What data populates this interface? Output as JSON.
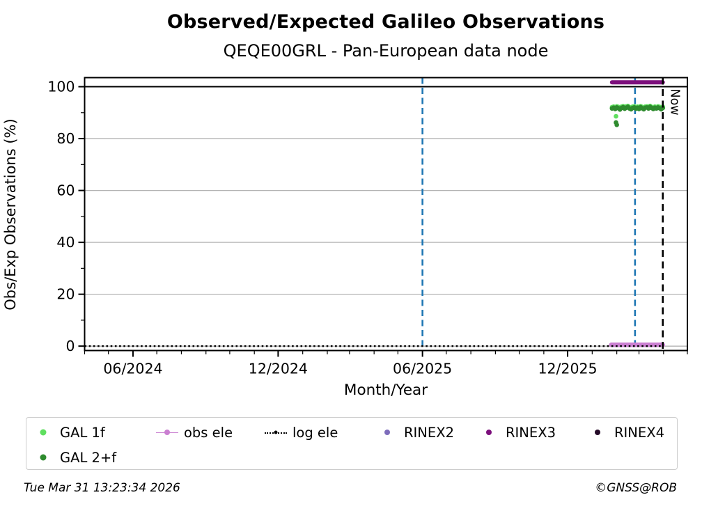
{
  "chart_data": {
    "type": "scatter",
    "title": "Observed/Expected Galileo Observations",
    "subtitle": "QEQE00GRL - Pan-European data node",
    "xlabel": "Month/Year",
    "ylabel": "Obs/Exp Observations (%)",
    "x_domain": [
      "2024-04-01",
      "2026-05-01"
    ],
    "y_domain": [
      -1.7,
      103.5
    ],
    "x_major_ticks": [
      {
        "date": "2024-06-01",
        "label": "06/2024"
      },
      {
        "date": "2024-12-01",
        "label": "12/2024"
      },
      {
        "date": "2025-06-01",
        "label": "06/2025"
      },
      {
        "date": "2025-12-01",
        "label": "12/2025"
      }
    ],
    "x_minor_tick_interval": "month",
    "y_major_ticks": [
      0,
      20,
      40,
      60,
      80,
      100
    ],
    "y_minor_ticks": [
      10,
      30,
      50,
      70,
      90
    ],
    "gridlines_y": [
      0,
      20,
      40,
      60,
      80
    ],
    "grid_color": "#b3b3b3",
    "reference_line_y": 100,
    "event_lines": [
      {
        "date": "2025-06-01",
        "color": "#1f77b4",
        "style": "dashed"
      },
      {
        "date": "2026-02-24",
        "color": "#1f77b4",
        "style": "dashed"
      }
    ],
    "now_line": {
      "date": "2026-03-31",
      "label": "Now",
      "color": "#000000",
      "style": "dashed"
    },
    "series": [
      {
        "name": "GAL 1f",
        "color": "#5fdf5f",
        "type": "points",
        "points": [
          [
            "2026-01-26",
            92.1
          ],
          [
            "2026-01-28",
            92.3
          ],
          [
            "2026-01-30",
            91.9
          ],
          [
            "2026-02-01",
            92.4
          ],
          [
            "2026-02-03",
            92.2
          ],
          [
            "2026-02-05",
            91.8
          ],
          [
            "2026-02-07",
            92.3
          ],
          [
            "2026-02-09",
            92.5
          ],
          [
            "2026-02-11",
            92.0
          ],
          [
            "2026-02-13",
            92.4
          ],
          [
            "2026-02-15",
            92.6
          ],
          [
            "2026-02-17",
            92.1
          ],
          [
            "2026-02-19",
            91.9
          ],
          [
            "2026-02-21",
            92.3
          ],
          [
            "2026-02-23",
            92.4
          ],
          [
            "2026-02-25",
            92.0
          ],
          [
            "2026-02-27",
            92.3
          ],
          [
            "2026-03-01",
            91.9
          ],
          [
            "2026-03-03",
            92.5
          ],
          [
            "2026-03-05",
            92.2
          ],
          [
            "2026-03-07",
            91.8
          ],
          [
            "2026-03-09",
            92.3
          ],
          [
            "2026-03-11",
            92.4
          ],
          [
            "2026-03-13",
            92.1
          ],
          [
            "2026-03-15",
            92.6
          ],
          [
            "2026-03-17",
            92.2
          ],
          [
            "2026-03-19",
            91.9
          ],
          [
            "2026-03-21",
            92.3
          ],
          [
            "2026-03-23",
            92.1
          ],
          [
            "2026-03-25",
            92.4
          ],
          [
            "2026-03-27",
            92.2
          ],
          [
            "2026-03-29",
            91.8
          ],
          [
            "2026-03-31",
            92.3
          ],
          [
            "2026-01-31",
            88.6
          ]
        ]
      },
      {
        "name": "GAL 2+f",
        "color": "#2e8b2e",
        "type": "points",
        "points": [
          [
            "2026-01-26",
            91.6
          ],
          [
            "2026-01-28",
            91.9
          ],
          [
            "2026-01-30",
            91.4
          ],
          [
            "2026-02-01",
            92.0
          ],
          [
            "2026-02-03",
            91.7
          ],
          [
            "2026-02-05",
            91.2
          ],
          [
            "2026-02-07",
            91.8
          ],
          [
            "2026-02-09",
            92.1
          ],
          [
            "2026-02-11",
            91.5
          ],
          [
            "2026-02-13",
            91.9
          ],
          [
            "2026-02-15",
            92.2
          ],
          [
            "2026-02-17",
            91.6
          ],
          [
            "2026-02-19",
            91.3
          ],
          [
            "2026-02-21",
            91.8
          ],
          [
            "2026-02-23",
            92.0
          ],
          [
            "2026-02-25",
            91.5
          ],
          [
            "2026-02-27",
            91.9
          ],
          [
            "2026-03-01",
            91.4
          ],
          [
            "2026-03-03",
            92.1
          ],
          [
            "2026-03-05",
            91.7
          ],
          [
            "2026-03-07",
            91.3
          ],
          [
            "2026-03-09",
            91.9
          ],
          [
            "2026-03-11",
            92.0
          ],
          [
            "2026-03-13",
            91.6
          ],
          [
            "2026-03-15",
            92.2
          ],
          [
            "2026-03-17",
            91.8
          ],
          [
            "2026-03-19",
            91.4
          ],
          [
            "2026-03-21",
            91.9
          ],
          [
            "2026-03-23",
            91.6
          ],
          [
            "2026-03-25",
            92.0
          ],
          [
            "2026-03-27",
            91.7
          ],
          [
            "2026-03-29",
            91.3
          ],
          [
            "2026-03-31",
            91.8
          ],
          [
            "2026-01-31",
            86.2
          ],
          [
            "2026-02-01",
            85.3
          ]
        ]
      },
      {
        "name": "obs ele",
        "color": "#ca7fd1",
        "type": "thick-line",
        "y": 0.5,
        "x0": "2026-01-25",
        "x1": "2026-03-31",
        "thickness": 6.5
      },
      {
        "name": "log ele",
        "color": "#000000",
        "type": "dotted-line",
        "y": 0,
        "x0": "2024-04-01",
        "x1": "2026-03-31",
        "thickness": 2.4
      },
      {
        "name": "RINEX2",
        "color": "#7d6cbb",
        "type": "points",
        "points": []
      },
      {
        "name": "RINEX3",
        "color": "#7c0f7c",
        "type": "thick-line",
        "y": 101.7,
        "x0": "2026-01-26",
        "x1": "2026-03-31",
        "thickness": 6
      },
      {
        "name": "RINEX4",
        "color": "#250a28",
        "type": "points",
        "points": []
      }
    ],
    "legend_position": "below"
  },
  "legend": {
    "items": [
      {
        "label": "GAL 1f",
        "marker": "dot",
        "color": "#5fdf5f"
      },
      {
        "label": "obs ele",
        "marker": "line-dot",
        "color": "#ca7fd1"
      },
      {
        "label": "log ele",
        "marker": "dotted-line-dot",
        "color": "#000000"
      },
      {
        "label": "RINEX2",
        "marker": "dot",
        "color": "#7d6cbb"
      },
      {
        "label": "RINEX3",
        "marker": "dot",
        "color": "#7c0f7c"
      },
      {
        "label": "RINEX4",
        "marker": "dot",
        "color": "#250a28"
      },
      {
        "label": "GAL 2+f",
        "marker": "dot",
        "color": "#2e8b2e"
      }
    ]
  },
  "footer": {
    "timestamp": "Tue Mar 31 13:23:34 2026",
    "credit": "©GNSS@ROB"
  }
}
